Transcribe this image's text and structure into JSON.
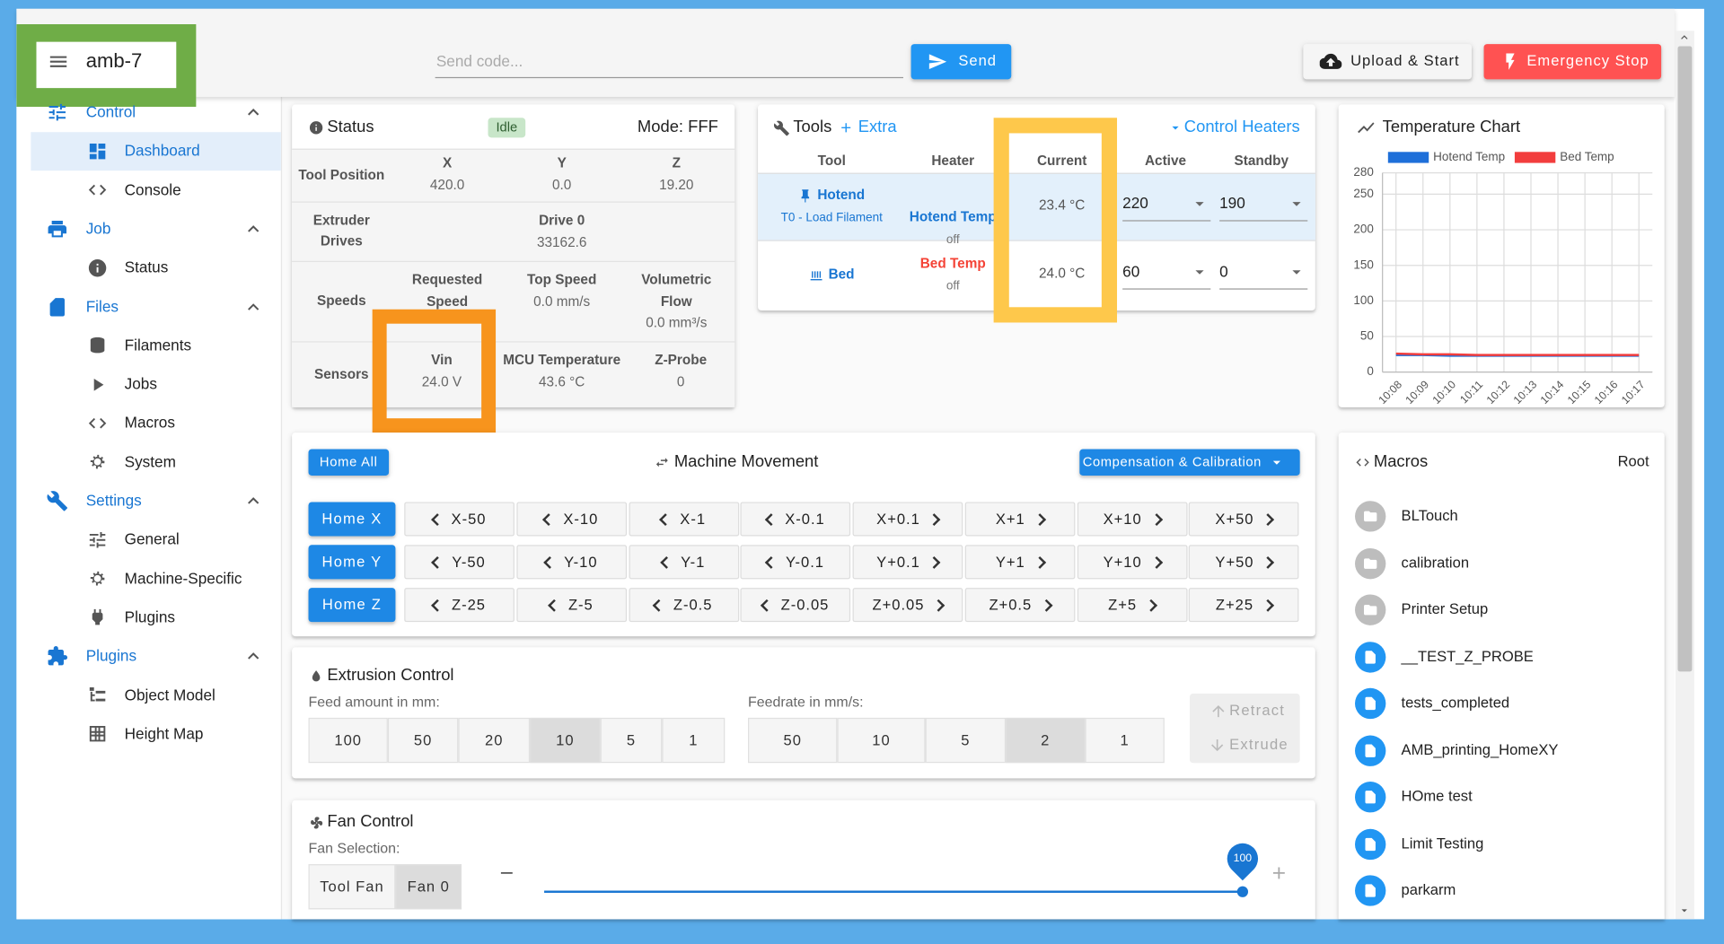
{
  "header": {
    "machine_name": "amb-7",
    "code_placeholder": "Send code...",
    "send": "Send",
    "upload": "Upload & Start",
    "emergency_stop": "Emergency Stop"
  },
  "sidebar": {
    "groups": [
      {
        "label": "Control",
        "items": [
          "Dashboard",
          "Console"
        ]
      },
      {
        "label": "Job",
        "items": [
          "Status"
        ]
      },
      {
        "label": "Files",
        "items": [
          "Filaments",
          "Jobs",
          "Macros",
          "System"
        ]
      },
      {
        "label": "Settings",
        "items": [
          "General",
          "Machine-Specific",
          "Plugins"
        ]
      },
      {
        "label": "Plugins",
        "items": [
          "Object Model",
          "Height Map"
        ]
      }
    ]
  },
  "status": {
    "title": "Status",
    "state": "Idle",
    "mode": "Mode: FFF",
    "rows": [
      {
        "label": "Tool Position",
        "cells": [
          {
            "name": "X",
            "value": "420.0"
          },
          {
            "name": "Y",
            "value": "0.0"
          },
          {
            "name": "Z",
            "value": "19.20"
          }
        ]
      },
      {
        "label": "Extruder Drives",
        "cells": [
          {
            "name": "Drive 0",
            "value": "33162.6"
          }
        ]
      },
      {
        "label": "Speeds",
        "cells": [
          {
            "name": "Requested Speed"
          },
          {
            "name": "Top Speed",
            "value": "0.0 mm/s"
          },
          {
            "name": "Volumetric Flow",
            "value": "0.0 mm³/s"
          }
        ]
      },
      {
        "label": "Sensors",
        "cells": [
          {
            "name": "Vin",
            "value": "24.0 V"
          },
          {
            "name": "MCU Temperature",
            "value": "43.6 °C"
          },
          {
            "name": "Z-Probe",
            "value": "0"
          }
        ]
      }
    ]
  },
  "tools": {
    "title": "Tools",
    "extra": "Extra",
    "control_heaters": "Control Heaters",
    "headers": [
      "Tool",
      "Heater",
      "Current",
      "Active",
      "Standby"
    ],
    "rows": [
      {
        "tool": "Hotend",
        "subtitle": "T0 - Load Filament",
        "heater": "Hotend Temp",
        "state": "off",
        "current": "23.4 °C",
        "active": "220",
        "standby": "190"
      },
      {
        "tool": "Bed",
        "heater": "Bed Temp",
        "state": "off",
        "current": "24.0 °C",
        "active": "60",
        "standby": "0"
      }
    ]
  },
  "chart_data": {
    "type": "line",
    "title": "Temperature Chart",
    "categories": [
      "10:08",
      "10:09",
      "10:10",
      "10:11",
      "10:12",
      "10:13",
      "10:14",
      "10:15",
      "10:16",
      "10:17"
    ],
    "series": [
      {
        "name": "Hotend Temp",
        "color": "#1e6fd9",
        "values": [
          24,
          24,
          23,
          23,
          23,
          23,
          23,
          23,
          23,
          23
        ]
      },
      {
        "name": "Bed Temp",
        "color": "#f23d3d",
        "values": [
          26,
          25,
          25,
          24,
          24,
          24,
          24,
          24,
          24,
          24
        ]
      }
    ],
    "ylim": [
      0,
      280
    ],
    "yticks": [
      0,
      50,
      100,
      150,
      200,
      250,
      280
    ],
    "grid": true
  },
  "movement": {
    "home_all": "Home All",
    "title": "Machine Movement",
    "calibration": "Compensation & Calibration",
    "rows": [
      {
        "home": "Home X",
        "steps": [
          "X-50",
          "X-10",
          "X-1",
          "X-0.1",
          "X+0.1",
          "X+1",
          "X+10",
          "X+50"
        ]
      },
      {
        "home": "Home Y",
        "steps": [
          "Y-50",
          "Y-10",
          "Y-1",
          "Y-0.1",
          "Y+0.1",
          "Y+1",
          "Y+10",
          "Y+50"
        ]
      },
      {
        "home": "Home Z",
        "steps": [
          "Z-25",
          "Z-5",
          "Z-0.5",
          "Z-0.05",
          "Z+0.05",
          "Z+0.5",
          "Z+5",
          "Z+25"
        ]
      }
    ]
  },
  "extrusion": {
    "title": "Extrusion Control",
    "feed_label": "Feed amount in mm:",
    "feed_amounts": [
      {
        "label": "100"
      },
      {
        "label": "50"
      },
      {
        "label": "20"
      },
      {
        "label": "10",
        "selected": true
      },
      {
        "label": "5"
      },
      {
        "label": "1"
      }
    ],
    "feedrate_label": "Feedrate in mm/s:",
    "feedrates": [
      {
        "label": "50"
      },
      {
        "label": "10"
      },
      {
        "label": "5"
      },
      {
        "label": "2",
        "selected": true
      },
      {
        "label": "1"
      }
    ],
    "retract": "Retract",
    "extrude": "Extrude"
  },
  "fan": {
    "title": "Fan Control",
    "selection_label": "Fan Selection:",
    "fans": [
      {
        "label": "Tool Fan"
      },
      {
        "label": "Fan 0",
        "selected": true
      }
    ],
    "value": 100
  },
  "macros": {
    "title": "Macros",
    "path": "Root",
    "folders": [
      "BLTouch",
      "calibration",
      "Printer Setup"
    ],
    "files": [
      "__TEST_Z_PROBE",
      "tests_completed",
      "AMB_printing_HomeXY",
      "HOme test",
      "Limit Testing",
      "parkarm"
    ]
  }
}
